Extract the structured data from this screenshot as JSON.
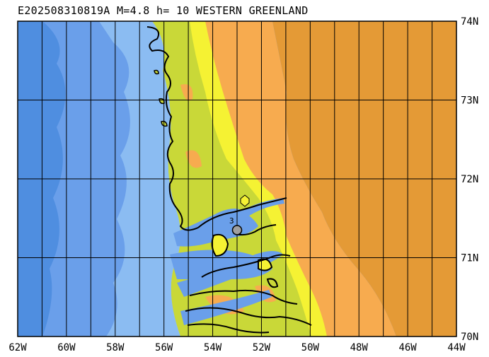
{
  "title": "E202508310819A M=4.8 h= 10 WESTERN GREENLAND",
  "map": {
    "lon_range": [
      -62,
      -44
    ],
    "lat_range": [
      70,
      74
    ],
    "lon_labels": [
      "62W",
      "60W",
      "58W",
      "56W",
      "54W",
      "52W",
      "50W",
      "48W",
      "46W",
      "44W"
    ],
    "lat_labels": [
      "74N",
      "73N",
      "72N",
      "71N",
      "70N"
    ],
    "epicenter": {
      "lon": -53.0,
      "lat": 71.35
    },
    "mark_label": "3",
    "colors": {
      "ocean_deep": "#4f8ee0",
      "ocean_mid": "#6a9fea",
      "ocean_shallow": "#8bbcf2",
      "shelf": "#9ccff8",
      "coast_low": "#f5f233",
      "coast_green": "#c9d838",
      "land_mid": "#f7ab4f",
      "land_high": "#e49a36",
      "grid": "#000000",
      "epicenter": "#a0a0a0"
    }
  }
}
